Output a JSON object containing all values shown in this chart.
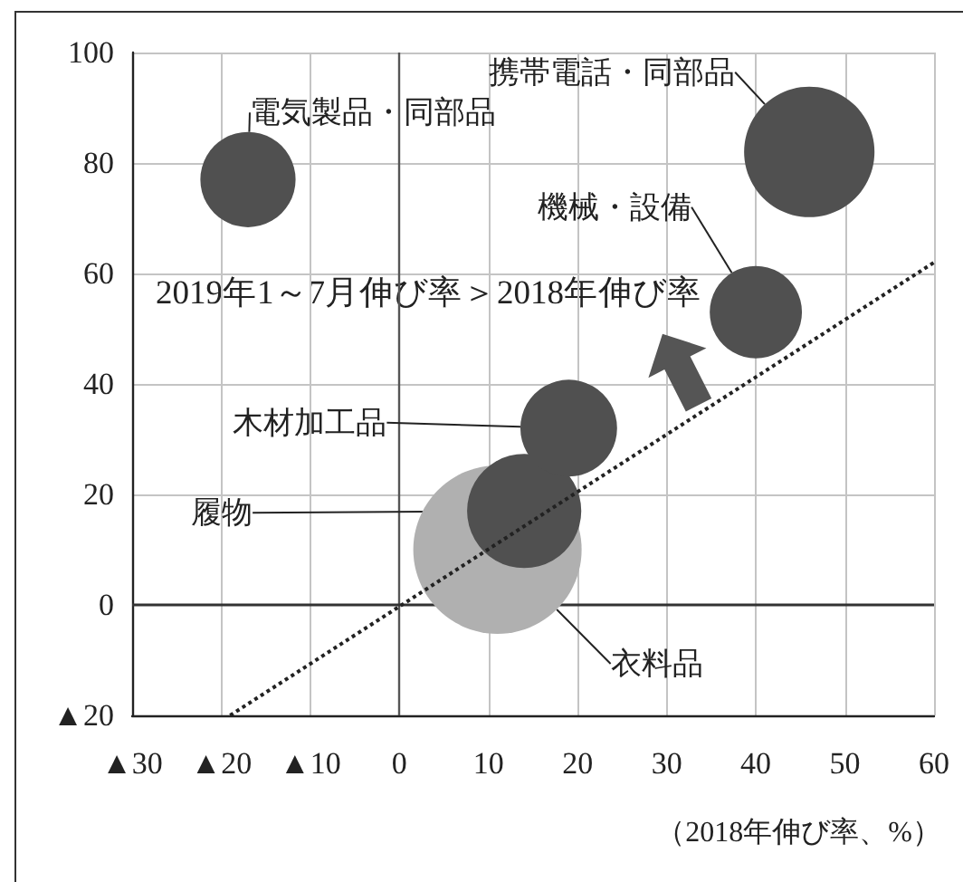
{
  "chart_data": {
    "type": "bubble",
    "xlabel": "（2018年伸び率、%）",
    "annotations": [
      "2019年1～7月伸び率＞2018年伸び率"
    ],
    "xlim": [
      -30,
      60
    ],
    "xticks": [
      {
        "value": -30,
        "label": "▲30"
      },
      {
        "value": -20,
        "label": "▲20"
      },
      {
        "value": -10,
        "label": "▲10"
      },
      0,
      10,
      20,
      30,
      40,
      50,
      60
    ],
    "ylim": [
      -20,
      100
    ],
    "yticks": [
      {
        "value": -20,
        "label": "▲20"
      },
      0,
      20,
      40,
      60,
      80,
      100
    ],
    "grid": true,
    "ref_lines": [
      {
        "axis": "x",
        "value": 0,
        "color": "#555555"
      },
      {
        "axis": "y",
        "value": 0,
        "color": "#333333"
      }
    ],
    "series": [
      {
        "name": "衣料品",
        "color": "#b0b0b0",
        "x": [
          11
        ],
        "values": [
          10
        ],
        "sizes": [
          1
        ]
      },
      {
        "name": "履物",
        "color": "#505050",
        "x": [
          14
        ],
        "values": [
          17
        ],
        "sizes": [
          0.46
        ]
      },
      {
        "name": "木材加工品",
        "color": "#505050",
        "x": [
          19
        ],
        "values": [
          32
        ],
        "sizes": [
          0.33
        ]
      },
      {
        "name": "機械・設備",
        "color": "#505050",
        "x": [
          40
        ],
        "values": [
          53
        ],
        "sizes": [
          0.3
        ]
      },
      {
        "name": "携帯電話・同部品",
        "color": "#505050",
        "x": [
          46
        ],
        "values": [
          82
        ],
        "sizes": [
          0.6
        ]
      },
      {
        "name": "電気製品・同部品",
        "color": "#505050",
        "x": [
          -17
        ],
        "values": [
          77
        ],
        "sizes": [
          0.32
        ]
      },
      {
        "type": "line",
        "color": "#222222",
        "x": [
          -19,
          60
        ],
        "values": [
          -20,
          62
        ],
        "line_style": "dotted",
        "marker": "none"
      }
    ]
  }
}
